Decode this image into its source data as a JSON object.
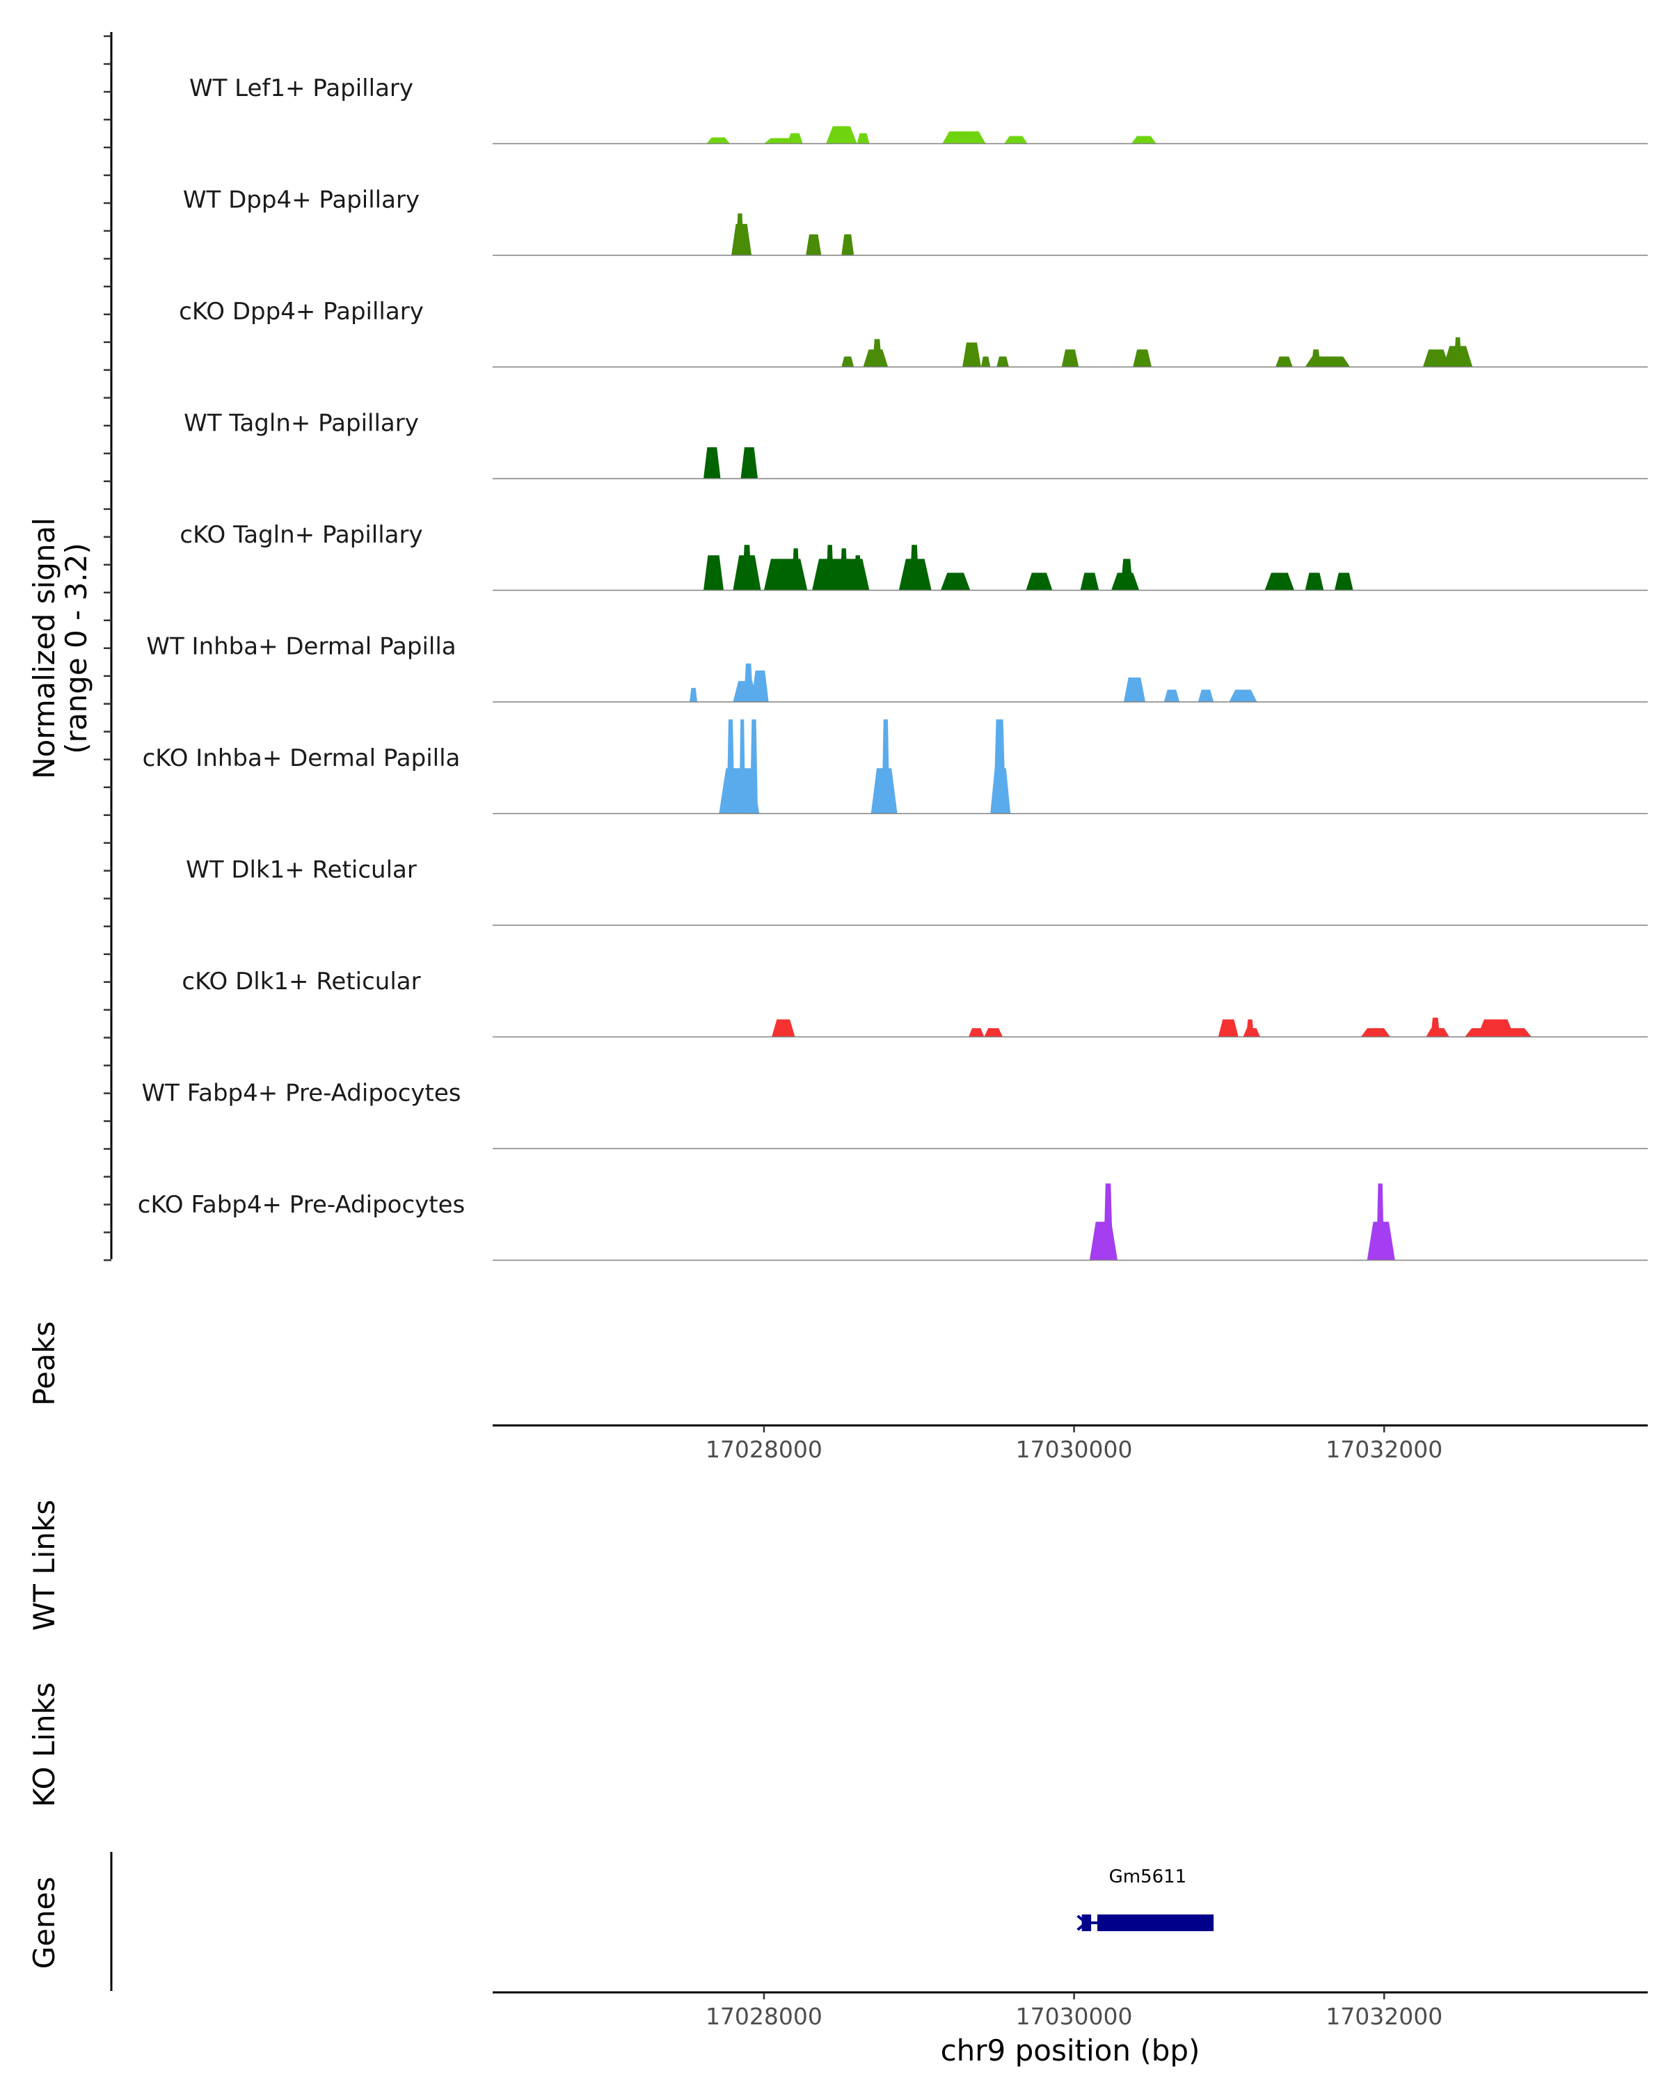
{
  "chart_data": {
    "type": "area",
    "title": "",
    "region": {
      "chrom": "chr9",
      "xlim": [
        17026250,
        17033700
      ]
    },
    "coverage_ylabel": [
      "Normalized signal",
      "(range 0 - 3.2)"
    ],
    "ylim": [
      0,
      3.2
    ],
    "xlabel": "chr9 position (bp)",
    "x_ticks": [
      17028000,
      17030000,
      17032000
    ],
    "x_tick_labels": [
      "17028000",
      "17030000",
      "17032000"
    ],
    "panel_labels": {
      "peaks": "Peaks",
      "wt_links": "WT Links",
      "ko_links": "KO Links",
      "genes": "Genes"
    },
    "tracks": [
      {
        "name": "WT Lef1+ Papillary",
        "color": "#6fd40f",
        "peaks": [
          [
            17027630,
            17027780,
            0.18
          ],
          [
            17028000,
            17028220,
            0.16
          ],
          [
            17028150,
            17028250,
            0.3
          ],
          [
            17028400,
            17028600,
            0.5
          ],
          [
            17028600,
            17028680,
            0.3
          ],
          [
            17029150,
            17029430,
            0.35
          ],
          [
            17029550,
            17029700,
            0.22
          ],
          [
            17030370,
            17030530,
            0.22
          ]
        ]
      },
      {
        "name": "WT Dpp4+ Papillary",
        "color": "#4a8c06",
        "peaks": [
          [
            17027790,
            17027920,
            0.9
          ],
          [
            17027820,
            17027870,
            1.2
          ],
          [
            17028270,
            17028370,
            0.6
          ],
          [
            17028500,
            17028580,
            0.6
          ]
        ]
      },
      {
        "name": "cKO Dpp4+ Papillary",
        "color": "#4a8c06",
        "peaks": [
          [
            17028500,
            17028580,
            0.3
          ],
          [
            17028640,
            17028800,
            0.5
          ],
          [
            17028700,
            17028760,
            0.8
          ],
          [
            17029280,
            17029400,
            0.7
          ],
          [
            17029400,
            17029460,
            0.3
          ],
          [
            17029500,
            17029580,
            0.3
          ],
          [
            17029920,
            17030030,
            0.5
          ],
          [
            17030380,
            17030500,
            0.5
          ],
          [
            17031300,
            17031410,
            0.3
          ],
          [
            17031490,
            17031780,
            0.3
          ],
          [
            17031530,
            17031590,
            0.5
          ],
          [
            17032250,
            17032420,
            0.5
          ],
          [
            17032380,
            17032570,
            0.6
          ],
          [
            17032450,
            17032500,
            0.85
          ]
        ]
      },
      {
        "name": "WT Tagln+ Papillary",
        "color": "#006400",
        "peaks": [
          [
            17027610,
            17027720,
            0.9
          ],
          [
            17027850,
            17027960,
            0.9
          ]
        ]
      },
      {
        "name": "cKO Tagln+ Papillary",
        "color": "#006400",
        "peaks": [
          [
            17027610,
            17027740,
            1.0
          ],
          [
            17027800,
            17027980,
            1.0
          ],
          [
            17027860,
            17027920,
            1.3
          ],
          [
            17028000,
            17028280,
            0.9
          ],
          [
            17028180,
            17028230,
            1.2
          ],
          [
            17028310,
            17028680,
            0.9
          ],
          [
            17028400,
            17028450,
            1.3
          ],
          [
            17028490,
            17028540,
            1.2
          ],
          [
            17028580,
            17028630,
            1.0
          ],
          [
            17028870,
            17029080,
            0.9
          ],
          [
            17028940,
            17029000,
            1.3
          ],
          [
            17029140,
            17029330,
            0.5
          ],
          [
            17029690,
            17029860,
            0.5
          ],
          [
            17030040,
            17030160,
            0.5
          ],
          [
            17030240,
            17030420,
            0.5
          ],
          [
            17030300,
            17030380,
            0.9
          ],
          [
            17031230,
            17031420,
            0.5
          ],
          [
            17031490,
            17031610,
            0.5
          ],
          [
            17031680,
            17031800,
            0.5
          ]
        ]
      },
      {
        "name": "WT Inhba+ Dermal Papilla",
        "color": "#5aabeb",
        "peaks": [
          [
            17027520,
            17027570,
            0.4
          ],
          [
            17027800,
            17027960,
            0.6
          ],
          [
            17027870,
            17027930,
            1.1
          ],
          [
            17027920,
            17028030,
            0.9
          ],
          [
            17030320,
            17030460,
            0.7
          ],
          [
            17030580,
            17030680,
            0.35
          ],
          [
            17030800,
            17030900,
            0.35
          ],
          [
            17031000,
            17031180,
            0.35
          ]
        ]
      },
      {
        "name": "cKO Inhba+ Dermal Papilla",
        "color": "#5aabeb",
        "peaks": [
          [
            17027710,
            17027970,
            1.3
          ],
          [
            17027760,
            17027810,
            2.7
          ],
          [
            17027840,
            17027880,
            2.7
          ],
          [
            17027910,
            17027960,
            2.7
          ],
          [
            17028690,
            17028860,
            1.3
          ],
          [
            17028760,
            17028810,
            2.7
          ],
          [
            17029460,
            17029590,
            1.3
          ],
          [
            17029480,
            17029560,
            2.7
          ]
        ]
      },
      {
        "name": "WT Dlk1+ Reticular",
        "color": "#f53131",
        "peaks": []
      },
      {
        "name": "cKO Dlk1+ Reticular",
        "color": "#f53131",
        "peaks": [
          [
            17028050,
            17028200,
            0.5
          ],
          [
            17029320,
            17029420,
            0.25
          ],
          [
            17029420,
            17029540,
            0.25
          ],
          [
            17030930,
            17031060,
            0.5
          ],
          [
            17031090,
            17031200,
            0.25
          ],
          [
            17031110,
            17031160,
            0.5
          ],
          [
            17031850,
            17032040,
            0.25
          ],
          [
            17032270,
            17032420,
            0.25
          ],
          [
            17032300,
            17032360,
            0.55
          ],
          [
            17032520,
            17032950,
            0.25
          ],
          [
            17032600,
            17032840,
            0.5
          ]
        ]
      },
      {
        "name": "WT Fabp4+ Pre-Adipocytes",
        "color": "#a43ef0",
        "peaks": []
      },
      {
        "name": "cKO Fabp4+ Pre-Adipocytes",
        "color": "#a43ef0",
        "peaks": [
          [
            17030100,
            17030280,
            1.1
          ],
          [
            17030190,
            17030250,
            2.2
          ],
          [
            17031890,
            17032070,
            1.1
          ],
          [
            17031950,
            17032000,
            2.2
          ]
        ]
      }
    ],
    "genes": [
      {
        "name": "Gm5611",
        "color": "#00008b",
        "start": 17030050,
        "end": 17030900,
        "exons": [
          [
            17030050,
            17030110
          ],
          [
            17030150,
            17030900
          ]
        ],
        "strand": "-"
      }
    ]
  }
}
